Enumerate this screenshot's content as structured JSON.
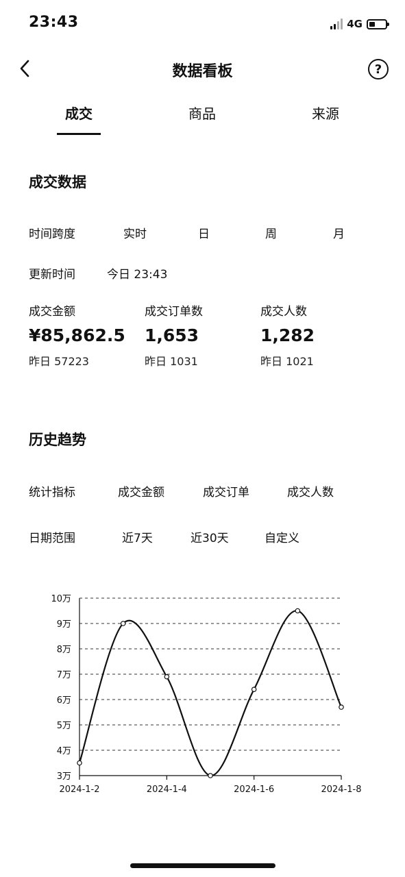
{
  "status_bar": {
    "time": "23:43",
    "network": "4G",
    "battery_level": 0.35
  },
  "nav": {
    "title": "数据看板",
    "help_label": "?"
  },
  "tabs": [
    {
      "label": "成交",
      "active": true
    },
    {
      "label": "商品",
      "active": false
    },
    {
      "label": "来源",
      "active": false
    }
  ],
  "deal_data": {
    "title": "成交数据",
    "time_span": {
      "label": "时间跨度",
      "options": [
        "实时",
        "日",
        "周",
        "月"
      ]
    },
    "update_time": {
      "label": "更新时间",
      "value": "今日 23:43"
    },
    "metrics": [
      {
        "label": "成交金额",
        "value": "¥85,862.5",
        "sub": "昨日 57223"
      },
      {
        "label": "成交订单数",
        "value": "1,653",
        "sub": "昨日 1031"
      },
      {
        "label": "成交人数",
        "value": "1,282",
        "sub": "昨日 1021"
      }
    ]
  },
  "history": {
    "title": "历史趋势",
    "metric_filter": {
      "label": "统计指标",
      "options": [
        "成交金额",
        "成交订单",
        "成交人数"
      ]
    },
    "date_range": {
      "label": "日期范围",
      "options": [
        "近7天",
        "近30天",
        "自定义"
      ]
    }
  },
  "chart_data": {
    "type": "line",
    "x": [
      "2024-1-2",
      "2024-1-3",
      "2024-1-4",
      "2024-1-5",
      "2024-1-6",
      "2024-1-7",
      "2024-1-8"
    ],
    "values": [
      35000,
      90000,
      69000,
      30000,
      64000,
      95000,
      57000
    ],
    "x_tick_labels": [
      "2024-1-2",
      "2024-1-4",
      "2024-1-6",
      "2024-1-8"
    ],
    "y_tick_labels": [
      "3万",
      "4万",
      "5万",
      "6万",
      "7万",
      "8万",
      "9万",
      "10万"
    ],
    "ylim": [
      30000,
      100000
    ],
    "grid": "horizontal-dashed",
    "line_color": "#111111"
  }
}
